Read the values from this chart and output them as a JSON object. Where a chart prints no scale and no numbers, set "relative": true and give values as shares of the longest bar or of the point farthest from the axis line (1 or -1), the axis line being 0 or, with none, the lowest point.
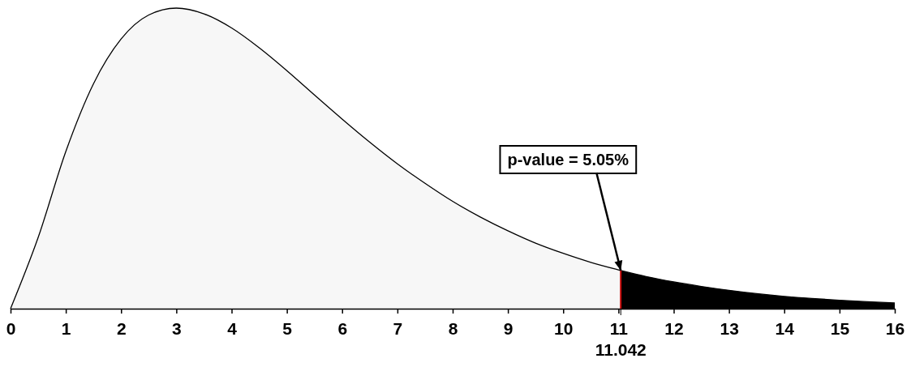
{
  "chart_data": {
    "type": "area",
    "relative": true,
    "xlim": [
      0,
      16
    ],
    "xticks": [
      0,
      1,
      2,
      3,
      4,
      5,
      6,
      7,
      8,
      9,
      10,
      11,
      12,
      13,
      14,
      15,
      16
    ],
    "series": [
      {
        "color": "#f7f7f7",
        "x": [
          0,
          0.5,
          1,
          1.5,
          2,
          2.5,
          3,
          3.5,
          4,
          4.5,
          5,
          5.5,
          6,
          6.5,
          7,
          7.5,
          8,
          8.5,
          9,
          9.5,
          10,
          10.5,
          11,
          11.042
        ],
        "values": [
          0,
          0.237,
          0.523,
          0.748,
          0.897,
          0.977,
          1,
          0.981,
          0.934,
          0.868,
          0.792,
          0.711,
          0.631,
          0.554,
          0.482,
          0.417,
          0.357,
          0.305,
          0.259,
          0.218,
          0.184,
          0.154,
          0.129,
          0.127
        ]
      },
      {
        "color": "#000000",
        "x": [
          11.042,
          11.5,
          12,
          12.5,
          13,
          13.5,
          14,
          14.5,
          15,
          15.5,
          16
        ],
        "values": [
          0.127,
          0.107,
          0.089,
          0.074,
          0.061,
          0.05,
          0.041,
          0.034,
          0.028,
          0.023,
          0.019
        ]
      }
    ],
    "ref_lines": [
      {
        "axis": "x",
        "value": 11.042,
        "label": "11.042",
        "color": "#c00000"
      }
    ],
    "annotations": [
      {
        "text": "p-value = 5.05%",
        "x": 11.042,
        "y": 0.127
      }
    ]
  }
}
